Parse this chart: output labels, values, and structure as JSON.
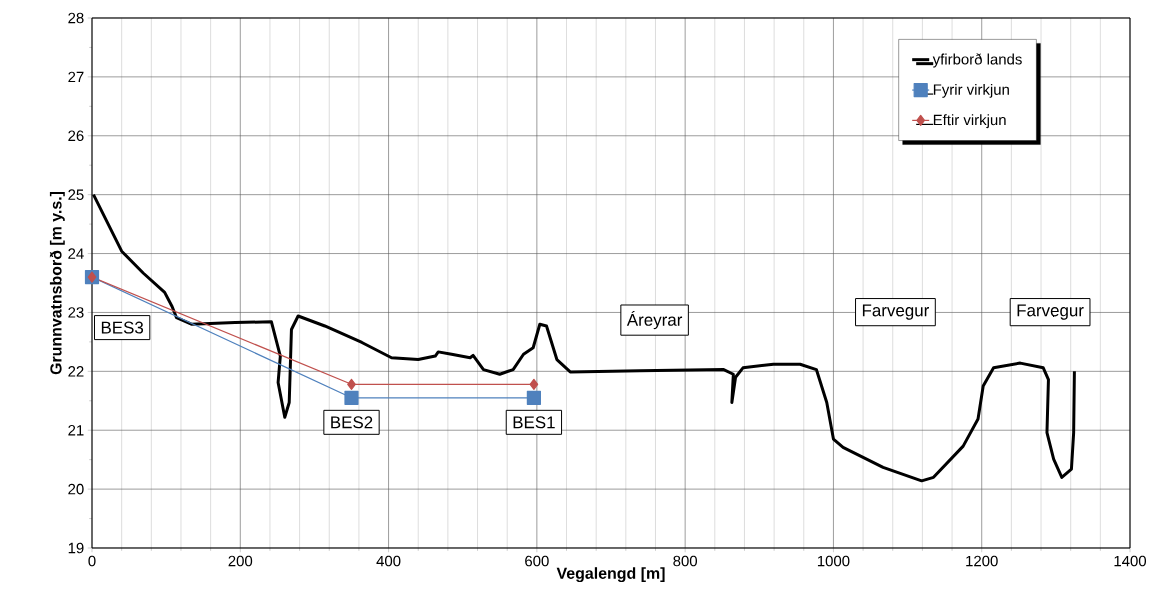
{
  "chart_data": {
    "type": "line",
    "xlabel": "Vegalengd [m]",
    "ylabel": "Grunnvatnsborð [m y.s.]",
    "xlim": [
      0,
      1400
    ],
    "xticks": [
      0,
      200,
      400,
      600,
      800,
      1000,
      1200,
      1400
    ],
    "ylim": [
      19,
      28
    ],
    "yticks": [
      19,
      20,
      21,
      22,
      23,
      24,
      25,
      26,
      27,
      28
    ],
    "grid": true,
    "legend": "top right",
    "series": [
      {
        "name": "yfirborð lands",
        "color": "#000000",
        "marker": "none",
        "x": [
          2,
          40,
          69,
          98,
          108,
          114,
          134,
          193,
          242,
          254,
          251,
          260,
          266,
          269,
          278,
          314,
          364,
          404,
          440,
          463,
          467,
          485,
          510,
          514,
          528,
          550,
          568,
          582,
          595,
          604,
          613,
          627,
          645,
          739,
          852,
          865,
          863,
          868,
          878,
          919,
          955,
          977,
          991,
          1000,
          1013,
          1067,
          1119,
          1135,
          1175,
          1195,
          1202,
          1216,
          1252,
          1283,
          1290,
          1288,
          1297,
          1308,
          1321,
          1324,
          1325
        ],
        "values": [
          25.0,
          24.04,
          23.67,
          23.34,
          23.1,
          22.91,
          22.8,
          22.83,
          22.84,
          22.26,
          21.81,
          21.22,
          21.47,
          22.71,
          22.94,
          22.77,
          22.49,
          22.23,
          22.2,
          22.26,
          22.33,
          22.29,
          22.23,
          22.27,
          22.03,
          21.95,
          22.03,
          22.29,
          22.4,
          22.8,
          22.77,
          22.2,
          21.99,
          22.01,
          22.03,
          21.95,
          21.47,
          21.9,
          22.06,
          22.12,
          22.12,
          22.03,
          21.47,
          20.85,
          20.71,
          20.37,
          20.14,
          20.2,
          20.73,
          21.19,
          21.75,
          22.06,
          22.14,
          22.06,
          21.86,
          20.96,
          20.51,
          20.2,
          20.34,
          20.96,
          22.0
        ]
      },
      {
        "name": "Fyrir virkjun",
        "color": "#4f81bd",
        "marker": "square",
        "x": [
          0,
          350,
          596
        ],
        "values": [
          23.6,
          21.55,
          21.55
        ]
      },
      {
        "name": "Eftir virkjun",
        "color": "#c0504d",
        "marker": "diamond",
        "x": [
          0,
          350,
          596
        ],
        "values": [
          23.6,
          21.78,
          21.78
        ]
      }
    ],
    "annotations": [
      {
        "text": "BES3",
        "x": 0,
        "y": 23.6
      },
      {
        "text": "BES2",
        "x": 350,
        "y": 21.55
      },
      {
        "text": "BES1",
        "x": 596,
        "y": 21.55
      },
      "Áreyrar",
      "Farvegur",
      "Farvegur"
    ]
  }
}
